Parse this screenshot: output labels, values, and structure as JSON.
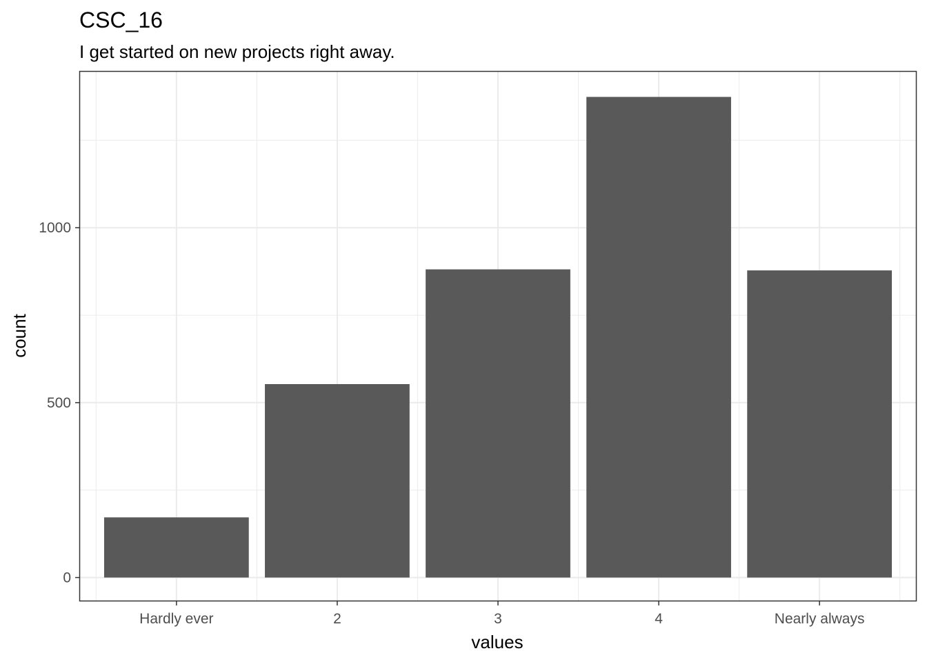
{
  "chart_data": {
    "type": "bar",
    "title": "CSC_16",
    "subtitle": "I get started on new projects right away.",
    "xlabel": "values",
    "ylabel": "count",
    "categories": [
      "Hardly ever",
      "2",
      "3",
      "4",
      "Nearly always"
    ],
    "values": [
      172,
      553,
      881,
      1374,
      878
    ],
    "ylim": [
      -66,
      1446
    ],
    "yticks": [
      0,
      500,
      1000
    ],
    "y_minor_ticks": [
      250,
      750,
      1250
    ],
    "grid": true,
    "legend": "none",
    "bar_color": "#595959",
    "grid_color": "#ebebeb"
  }
}
